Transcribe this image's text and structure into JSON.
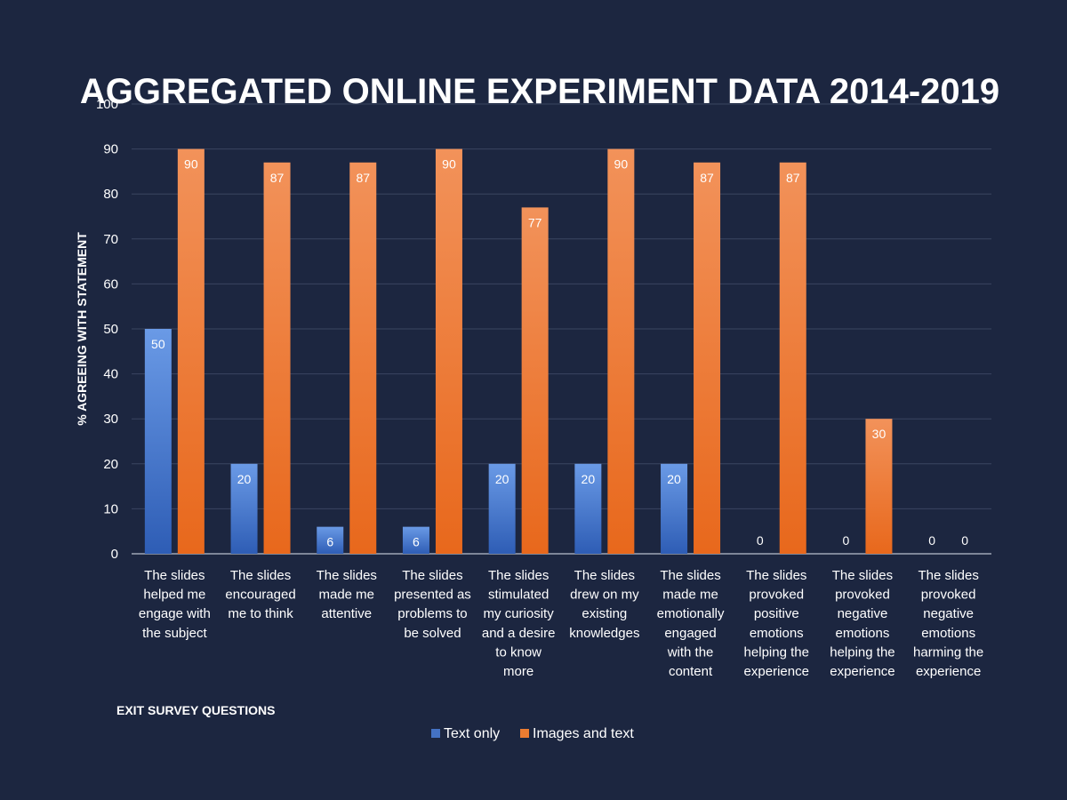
{
  "chart_data": {
    "type": "bar",
    "title": "AGGREGATED ONLINE EXPERIMENT DATA 2014-2019",
    "xlabel": "EXIT SURVEY QUESTIONS",
    "ylabel": "% AGREEING WITH STATEMENT",
    "ylim": [
      0,
      100
    ],
    "yticks": [
      0,
      10,
      20,
      30,
      40,
      50,
      60,
      70,
      80,
      90,
      100
    ],
    "grid": true,
    "legend_position": "bottom",
    "categories": [
      "The slides helped me engage with the subject",
      "The slides encouraged me to think",
      "The slides made me attentive",
      "The slides presented as problems to be solved",
      "The slides stimulated my curiosity and a desire to know more",
      "The slides drew on my existing knowledges",
      "The slides made me emotionally engaged with the content",
      "The slides provoked positive emotions helping the experience",
      "The slides provoked negative emotions helping the experience",
      "The slides provoked negative emotions harming the experience"
    ],
    "category_lines": [
      [
        "The slides",
        "helped me",
        "engage with",
        "the subject"
      ],
      [
        "The slides",
        "encouraged",
        "me to think"
      ],
      [
        "The slides",
        "made me",
        "attentive"
      ],
      [
        "The slides",
        "presented as",
        "problems to",
        "be solved"
      ],
      [
        "The slides",
        "stimulated",
        "my curiosity",
        "and a desire",
        "to know",
        "more"
      ],
      [
        "The slides",
        "drew on my",
        "existing",
        "knowledges"
      ],
      [
        "The slides",
        "made me",
        "emotionally",
        "engaged",
        "with the",
        "content"
      ],
      [
        "The slides",
        "provoked",
        "positive",
        "emotions",
        "helping the",
        "experience"
      ],
      [
        "The slides",
        "provoked",
        "negative",
        "emotions",
        "helping the",
        "experience"
      ],
      [
        "The slides",
        "provoked",
        "negative",
        "emotions",
        "harming the",
        "experience"
      ]
    ],
    "series": [
      {
        "name": "Text only",
        "color": "#4472c4",
        "values": [
          50,
          20,
          6,
          6,
          20,
          20,
          20,
          0,
          0,
          0
        ]
      },
      {
        "name": "Images and text",
        "color": "#ed7d31",
        "values": [
          90,
          87,
          87,
          90,
          77,
          90,
          87,
          87,
          30,
          0
        ]
      }
    ]
  },
  "colors": {
    "background": "#1c2640",
    "gridline": "#3a4560",
    "text": "#ffffff"
  }
}
